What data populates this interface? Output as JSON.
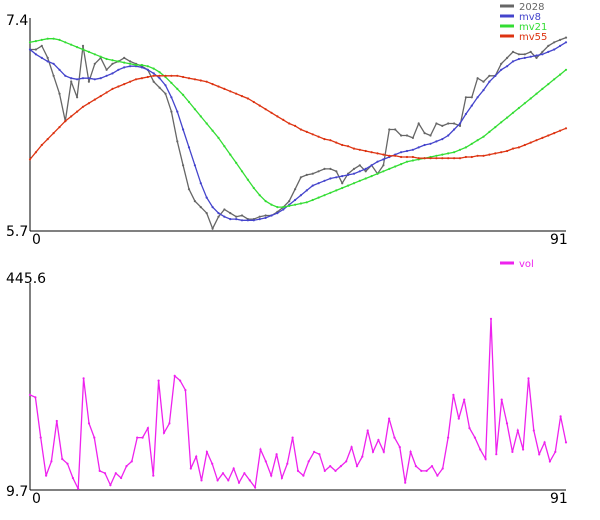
{
  "chart_data": [
    {
      "type": "line",
      "ylim": [
        5.7,
        7.4
      ],
      "xlim": [
        0,
        91
      ],
      "tick_labels": {
        "y_top": "7.4",
        "y_bottom": "5.7",
        "x_left": "0",
        "x_right": "91"
      },
      "legend_placement": "top-right",
      "grid": false,
      "series": [
        {
          "name": "2028",
          "color": "#666666",
          "values": [
            7.22,
            7.22,
            7.25,
            7.15,
            7.0,
            6.85,
            6.62,
            6.95,
            6.82,
            7.25,
            6.95,
            7.1,
            7.15,
            7.05,
            7.1,
            7.12,
            7.15,
            7.12,
            7.1,
            7.08,
            7.05,
            6.95,
            6.9,
            6.85,
            6.7,
            6.45,
            6.25,
            6.05,
            5.95,
            5.9,
            5.85,
            5.72,
            5.82,
            5.88,
            5.85,
            5.82,
            5.83,
            5.8,
            5.8,
            5.82,
            5.83,
            5.83,
            5.86,
            5.9,
            5.95,
            6.05,
            6.15,
            6.17,
            6.18,
            6.2,
            6.22,
            6.22,
            6.2,
            6.1,
            6.18,
            6.22,
            6.25,
            6.2,
            6.25,
            6.18,
            6.25,
            6.55,
            6.55,
            6.5,
            6.5,
            6.48,
            6.6,
            6.52,
            6.5,
            6.6,
            6.58,
            6.6,
            6.6,
            6.58,
            6.82,
            6.82,
            6.98,
            6.95,
            7.0,
            7.0,
            7.1,
            7.15,
            7.2,
            7.18,
            7.18,
            7.2,
            7.15,
            7.2,
            7.25,
            7.28,
            7.3,
            7.32
          ]
        },
        {
          "name": "mv8",
          "color": "#4444cc",
          "values": [
            7.22,
            7.18,
            7.15,
            7.12,
            7.1,
            7.05,
            7.0,
            6.98,
            6.97,
            6.98,
            6.98,
            6.97,
            6.98,
            7.0,
            7.02,
            7.05,
            7.07,
            7.08,
            7.08,
            7.07,
            7.05,
            7.02,
            6.98,
            6.92,
            6.82,
            6.7,
            6.55,
            6.4,
            6.25,
            6.1,
            5.98,
            5.9,
            5.85,
            5.82,
            5.8,
            5.8,
            5.79,
            5.79,
            5.79,
            5.8,
            5.81,
            5.83,
            5.85,
            5.88,
            5.92,
            5.96,
            6.0,
            6.04,
            6.08,
            6.1,
            6.12,
            6.14,
            6.15,
            6.16,
            6.17,
            6.18,
            6.2,
            6.22,
            6.25,
            6.28,
            6.3,
            6.32,
            6.34,
            6.36,
            6.37,
            6.38,
            6.4,
            6.42,
            6.43,
            6.45,
            6.47,
            6.5,
            6.55,
            6.6,
            6.68,
            6.75,
            6.82,
            6.88,
            6.95,
            7.0,
            7.05,
            7.08,
            7.12,
            7.14,
            7.15,
            7.16,
            7.17,
            7.18,
            7.2,
            7.22,
            7.25,
            7.28
          ]
        },
        {
          "name": "mv21",
          "color": "#33dd33",
          "values": [
            7.28,
            7.29,
            7.3,
            7.31,
            7.31,
            7.3,
            7.28,
            7.26,
            7.24,
            7.22,
            7.2,
            7.18,
            7.16,
            7.14,
            7.13,
            7.12,
            7.11,
            7.1,
            7.09,
            7.09,
            7.08,
            7.06,
            7.03,
            6.99,
            6.94,
            6.89,
            6.84,
            6.78,
            6.72,
            6.66,
            6.6,
            6.54,
            6.48,
            6.41,
            6.34,
            6.27,
            6.2,
            6.13,
            6.06,
            6.0,
            5.95,
            5.92,
            5.9,
            5.9,
            5.91,
            5.92,
            5.93,
            5.94,
            5.96,
            5.98,
            6.0,
            6.02,
            6.04,
            6.06,
            6.08,
            6.1,
            6.12,
            6.14,
            6.16,
            6.18,
            6.2,
            6.22,
            6.24,
            6.26,
            6.28,
            6.29,
            6.3,
            6.31,
            6.32,
            6.33,
            6.34,
            6.35,
            6.36,
            6.38,
            6.4,
            6.43,
            6.46,
            6.49,
            6.53,
            6.57,
            6.61,
            6.65,
            6.69,
            6.73,
            6.77,
            6.81,
            6.85,
            6.89,
            6.93,
            6.97,
            7.01,
            7.05
          ]
        },
        {
          "name": "mv55",
          "color": "#dd3311",
          "values": [
            6.3,
            6.36,
            6.42,
            6.47,
            6.52,
            6.57,
            6.62,
            6.66,
            6.7,
            6.74,
            6.77,
            6.8,
            6.83,
            6.86,
            6.89,
            6.91,
            6.93,
            6.95,
            6.97,
            6.98,
            6.99,
            7.0,
            7.0,
            7.0,
            7.0,
            7.0,
            6.99,
            6.98,
            6.97,
            6.96,
            6.95,
            6.93,
            6.91,
            6.89,
            6.87,
            6.85,
            6.83,
            6.81,
            6.78,
            6.75,
            6.72,
            6.69,
            6.66,
            6.63,
            6.6,
            6.58,
            6.55,
            6.53,
            6.51,
            6.49,
            6.47,
            6.46,
            6.44,
            6.42,
            6.41,
            6.39,
            6.38,
            6.37,
            6.36,
            6.35,
            6.34,
            6.33,
            6.33,
            6.32,
            6.32,
            6.32,
            6.31,
            6.31,
            6.31,
            6.31,
            6.31,
            6.31,
            6.31,
            6.31,
            6.32,
            6.32,
            6.33,
            6.33,
            6.34,
            6.35,
            6.36,
            6.37,
            6.39,
            6.4,
            6.42,
            6.44,
            6.46,
            6.48,
            6.5,
            6.52,
            6.54,
            6.56
          ]
        }
      ]
    },
    {
      "type": "line",
      "ylim": [
        9.7,
        445.6
      ],
      "xlim": [
        0,
        91
      ],
      "tick_labels": {
        "y_top": "445.6",
        "y_bottom": "9.7",
        "x_left": "0",
        "x_right": "91"
      },
      "legend_placement": "top-right",
      "grid": false,
      "series": [
        {
          "name": "vol",
          "color": "#ee22ee",
          "values": [
            210,
            205,
            120,
            40,
            70,
            155,
            75,
            65,
            35,
            12,
            245,
            150,
            120,
            50,
            45,
            20,
            45,
            35,
            60,
            70,
            120,
            120,
            140,
            40,
            240,
            130,
            150,
            250,
            240,
            220,
            55,
            80,
            30,
            90,
            65,
            30,
            45,
            30,
            55,
            25,
            45,
            30,
            15,
            95,
            70,
            40,
            85,
            35,
            65,
            120,
            50,
            40,
            70,
            90,
            85,
            50,
            60,
            50,
            60,
            70,
            100,
            60,
            80,
            135,
            90,
            115,
            90,
            160,
            120,
            100,
            25,
            90,
            60,
            50,
            50,
            60,
            40,
            55,
            120,
            210,
            160,
            200,
            140,
            120,
            95,
            75,
            370,
            85,
            200,
            150,
            90,
            135,
            95,
            245,
            135,
            85,
            110,
            70,
            90,
            165,
            110
          ]
        }
      ]
    }
  ]
}
